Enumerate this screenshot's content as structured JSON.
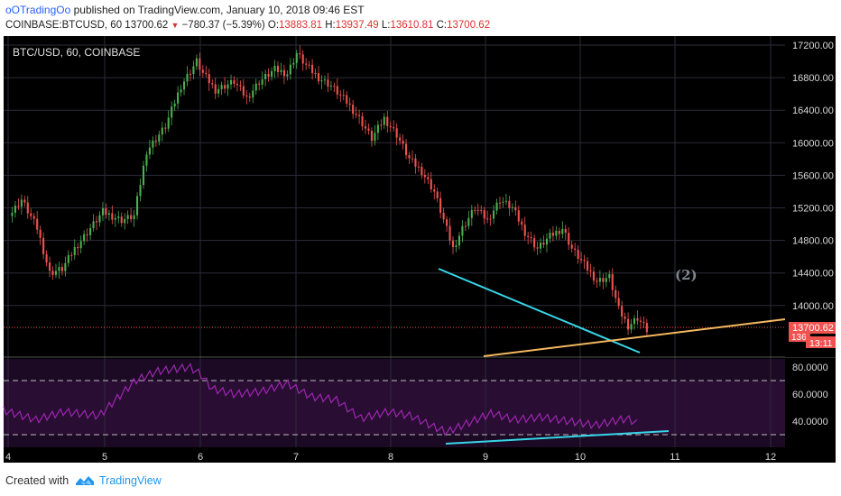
{
  "header": {
    "username": "oOTradingOo",
    "publish_text": "published on TradingView.com, January 10, 2018 09:46 EST",
    "symbol_interval": "COINBASE:BTCUSD, 60",
    "last": "13700.62",
    "change": "−780.37 (−5.39%)",
    "open_label": "O:",
    "open": "13883.81",
    "high_label": "H:",
    "high": "13937.49",
    "low_label": "L:",
    "low": "13610.81",
    "close_label": "C:",
    "close": "13700.62"
  },
  "chart": {
    "pane_title": "BTC/USD, 60, COINBASE",
    "price_ticks": [
      "17200.00",
      "16800.00",
      "16400.00",
      "16000.00",
      "15600.00",
      "15200.00",
      "14800.00",
      "14400.00",
      "14000.00"
    ],
    "last_price_label": "13700.62",
    "countdown_label": "13:11",
    "hidden_label": "136",
    "wave_label": "(2)",
    "rsi_ticks": [
      "80.0000",
      "60.0000",
      "40.0000"
    ],
    "x_ticks": [
      "4",
      "5",
      "6",
      "7",
      "8",
      "9",
      "10",
      "11",
      "12"
    ]
  },
  "colors": {
    "background": "#000000",
    "grid": "#2c2c3a",
    "up": "#4caf50",
    "down": "#ef5350",
    "trend_cyan": "#35d6e8",
    "trend_orange": "#f4b860",
    "rsi_line": "#9c27b0",
    "rsi_band": "#2a0d33",
    "accent": "#2196f3"
  },
  "footer": {
    "created_with": "Created with",
    "brand": "TradingView"
  }
}
